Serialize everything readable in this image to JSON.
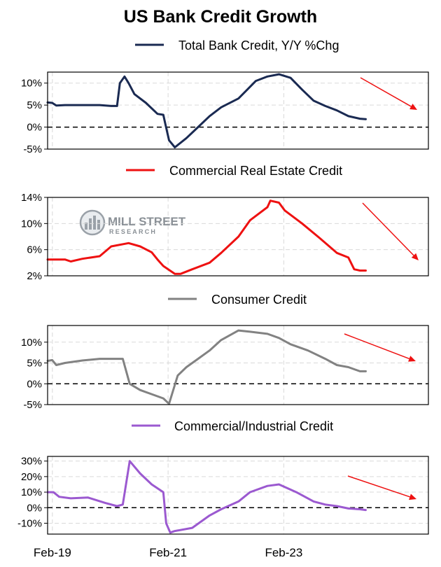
{
  "chart_data": {
    "type": "line",
    "title": "US Bank Credit Growth",
    "watermark": {
      "line1": "MILL STREET",
      "line2": "RESEARCH"
    },
    "x_labels": [
      "Feb-19",
      "Feb-21",
      "Feb-23"
    ],
    "x_label_positions": [
      2019.083,
      2021.083,
      2023.083
    ],
    "x_range": [
      2019.0,
      2025.583
    ],
    "trend_arrow_color": "#ee1111",
    "panels": [
      {
        "name": "Total Bank Credit, Y/Y %Chg",
        "color": "#1a2a52",
        "ylim": [
          -5,
          12.5
        ],
        "yticks": [
          -5,
          0,
          5,
          10
        ],
        "ytick_labels": [
          "-5%",
          "0%",
          "5%",
          "10%"
        ],
        "zero_line": true,
        "x": [
          2019.0,
          2019.08,
          2019.15,
          2019.3,
          2019.6,
          2019.9,
          2020.1,
          2020.2,
          2020.25,
          2020.33,
          2020.4,
          2020.5,
          2020.7,
          2020.9,
          2021.0,
          2021.03,
          2021.1,
          2021.2,
          2021.4,
          2021.6,
          2021.8,
          2022.0,
          2022.3,
          2022.6,
          2022.8,
          2023.0,
          2023.2,
          2023.4,
          2023.6,
          2023.8,
          2024.0,
          2024.2,
          2024.4,
          2024.5
        ],
        "values": [
          5.6,
          5.5,
          4.9,
          5.0,
          5.0,
          5.0,
          4.8,
          4.8,
          10.0,
          11.5,
          10.0,
          7.5,
          5.5,
          3.0,
          2.8,
          1.0,
          -3.0,
          -4.6,
          -2.5,
          0.0,
          2.5,
          4.5,
          6.5,
          10.5,
          11.5,
          12.0,
          11.2,
          8.5,
          6.0,
          4.8,
          3.8,
          2.5,
          1.9,
          1.8
        ]
      },
      {
        "name": "Commercial Real Estate Credit",
        "color": "#ee1111",
        "ylim": [
          2,
          14
        ],
        "yticks": [
          2,
          6,
          10,
          14
        ],
        "ytick_labels": [
          "2%",
          "6%",
          "10%",
          "14%"
        ],
        "zero_line": false,
        "x": [
          2019.0,
          2019.3,
          2019.4,
          2019.6,
          2019.9,
          2020.1,
          2020.4,
          2020.6,
          2020.8,
          2020.9,
          2021.0,
          2021.2,
          2021.3,
          2021.5,
          2021.8,
          2022.0,
          2022.3,
          2022.5,
          2022.8,
          2022.85,
          2023.0,
          2023.1,
          2023.4,
          2023.7,
          2024.0,
          2024.2,
          2024.3,
          2024.4,
          2024.5
        ],
        "values": [
          4.5,
          4.5,
          4.2,
          4.6,
          5.0,
          6.5,
          7.0,
          6.5,
          5.6,
          4.5,
          3.5,
          2.3,
          2.3,
          3.0,
          4.0,
          5.5,
          8.0,
          10.5,
          12.5,
          13.5,
          13.2,
          12.0,
          10.0,
          7.8,
          5.5,
          4.8,
          3.0,
          2.8,
          2.8
        ]
      },
      {
        "name": "Consumer Credit",
        "color": "#828282",
        "ylim": [
          -5,
          14
        ],
        "yticks": [
          -5,
          0,
          5,
          10
        ],
        "ytick_labels": [
          "-5%",
          "0%",
          "5%",
          "10%"
        ],
        "zero_line": true,
        "x": [
          2019.0,
          2019.08,
          2019.15,
          2019.3,
          2019.6,
          2019.9,
          2020.2,
          2020.3,
          2020.42,
          2020.6,
          2020.8,
          2021.0,
          2021.1,
          2021.25,
          2021.4,
          2021.6,
          2021.8,
          2022.0,
          2022.3,
          2022.5,
          2022.8,
          2023.0,
          2023.2,
          2023.5,
          2023.8,
          2024.0,
          2024.2,
          2024.4,
          2024.5
        ],
        "values": [
          5.5,
          5.7,
          4.5,
          5.0,
          5.6,
          6.0,
          6.0,
          6.0,
          0.0,
          -1.5,
          -2.5,
          -3.5,
          -4.8,
          2.0,
          4.0,
          6.0,
          8.0,
          10.5,
          12.8,
          12.5,
          12.0,
          11.0,
          9.5,
          8.0,
          6.0,
          4.5,
          4.0,
          3.0,
          3.0
        ]
      },
      {
        "name": "Commercial/Industrial Credit",
        "color": "#9b59d0",
        "ylim": [
          -17,
          33
        ],
        "yticks": [
          -10,
          0,
          10,
          20,
          30
        ],
        "ytick_labels": [
          "-10%",
          "0%",
          "10%",
          "20%",
          "30%"
        ],
        "zero_line": true,
        "x": [
          2019.0,
          2019.1,
          2019.2,
          2019.4,
          2019.7,
          2020.0,
          2020.2,
          2020.3,
          2020.42,
          2020.6,
          2020.8,
          2021.0,
          2021.05,
          2021.12,
          2021.2,
          2021.5,
          2021.8,
          2022.0,
          2022.3,
          2022.5,
          2022.8,
          2023.0,
          2023.3,
          2023.6,
          2023.8,
          2024.0,
          2024.2,
          2024.4,
          2024.5
        ],
        "values": [
          10.0,
          10.0,
          7.0,
          6.0,
          6.5,
          3.0,
          1.0,
          2.0,
          30.0,
          22.0,
          15.0,
          10.0,
          -10.0,
          -16.0,
          -15.0,
          -13.0,
          -5.0,
          -1.0,
          4.0,
          10.0,
          14.0,
          15.0,
          10.0,
          4.0,
          2.0,
          1.0,
          -0.5,
          -1.0,
          -1.5
        ]
      }
    ]
  }
}
